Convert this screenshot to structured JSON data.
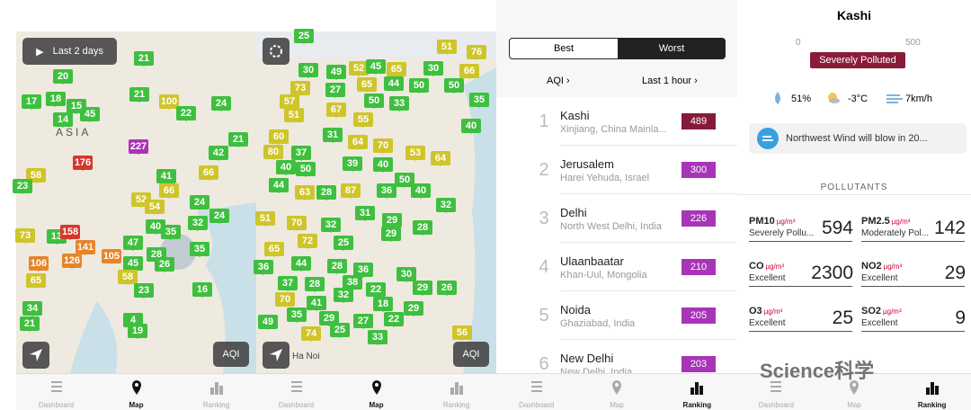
{
  "map_panels": [
    {
      "playback_label": "Last 2 days",
      "region_label": "ASIA",
      "aqi_button": "AQI",
      "markers": [
        21,
        20,
        17,
        18,
        45,
        15,
        14,
        100,
        22,
        24,
        21,
        227,
        176,
        42,
        21,
        66,
        58,
        41,
        66,
        52,
        54,
        24,
        47,
        40,
        35,
        32,
        24,
        35,
        28,
        26,
        45,
        105,
        126,
        106,
        73,
        13,
        158,
        141,
        65,
        58,
        23,
        16,
        34,
        4,
        19,
        21,
        23
      ]
    },
    {
      "city_label": "Ha Noi",
      "aqi_button": "AQI",
      "markers": [
        25,
        51,
        76,
        30,
        49,
        52,
        45,
        65,
        30,
        66,
        73,
        27,
        65,
        44,
        50,
        50,
        35,
        57,
        51,
        67,
        50,
        33,
        55,
        40,
        60,
        80,
        37,
        31,
        64,
        70,
        53,
        64,
        40,
        50,
        39,
        40,
        50,
        44,
        63,
        28,
        87,
        36,
        40,
        32,
        51,
        70,
        32,
        31,
        29,
        28,
        65,
        72,
        25,
        29,
        36,
        44,
        28,
        36,
        30,
        37,
        28,
        38,
        22,
        29,
        26,
        70,
        41,
        32,
        18,
        29,
        49,
        35,
        29,
        27,
        22,
        74,
        25,
        33,
        56
      ]
    }
  ],
  "tab_bar": [
    "Dashboard",
    "Map",
    "Ranking"
  ],
  "ranking": {
    "tabs": [
      "Best",
      "Worst"
    ],
    "sort_label": "AQI",
    "period_label": "Last 1 hour",
    "rows": [
      {
        "rank": 1,
        "city": "Kashi",
        "region": "Xinjiang, China Mainla...",
        "aqi": 489
      },
      {
        "rank": 2,
        "city": "Jerusalem",
        "region": "Harei Yehuda, Israel",
        "aqi": 300
      },
      {
        "rank": 3,
        "city": "Delhi",
        "region": "North West Delhi, India",
        "aqi": 226
      },
      {
        "rank": 4,
        "city": "Ulaanbaatar",
        "region": "Khan-Uul, Mongolia",
        "aqi": 210
      },
      {
        "rank": 5,
        "city": "Noida",
        "region": "Ghaziabad, India",
        "aqi": 205
      },
      {
        "rank": 6,
        "city": "New Delhi",
        "region": "New Delhi, India",
        "aqi": 203
      }
    ]
  },
  "detail": {
    "title": "Kashi",
    "scale_min": 0,
    "scale_max": 500,
    "status": "Severely Polluted",
    "humidity": "51%",
    "temperature": "-3°C",
    "wind": "7km/h",
    "wind_message": "Northwest Wind will blow in 20...",
    "section_title": "POLLUTANTS",
    "pollutants": [
      {
        "name": "PM10",
        "unit": "µg/m³",
        "status": "Severely Pollu...",
        "value": 594
      },
      {
        "name": "PM2.5",
        "unit": "µg/m³",
        "status": "Moderately Pol...",
        "value": 142
      },
      {
        "name": "CO",
        "unit": "µg/m³",
        "status": "Excellent",
        "value": 2300
      },
      {
        "name": "NO2",
        "unit": "µg/m³",
        "status": "Excellent",
        "value": 29
      },
      {
        "name": "O3",
        "unit": "µg/m³",
        "status": "Excellent",
        "value": 25
      },
      {
        "name": "SO2",
        "unit": "µg/m³",
        "status": "Excellent",
        "value": 9
      }
    ]
  },
  "watermark": "Science科学"
}
